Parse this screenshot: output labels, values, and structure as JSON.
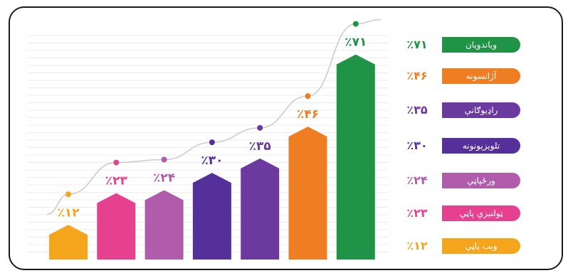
{
  "chart_data": {
    "type": "bar",
    "categories": [
      "ویب پاڼې",
      "ټولنیزې پاڼې",
      "ورځپاڼې",
      "تلویزیونونه",
      "راډیوګانې",
      "آژانسونه",
      "ویاندویان"
    ],
    "values": [
      12,
      23,
      24,
      30,
      35,
      46,
      71
    ],
    "value_labels": [
      "٪۱۲",
      "٪۲۳",
      "٪۲۴",
      "٪۳۰",
      "٪۳۵",
      "٪۴۶",
      "٪۷۱"
    ],
    "colors": [
      "#f4a51c",
      "#e5418f",
      "#b05bab",
      "#56309a",
      "#6a3a9e",
      "#ef7d22",
      "#1f9447"
    ],
    "ylim": [
      0,
      80
    ],
    "grid": true,
    "trend_line": true,
    "legend_position": "right",
    "title": "",
    "xlabel": "",
    "ylabel": ""
  }
}
